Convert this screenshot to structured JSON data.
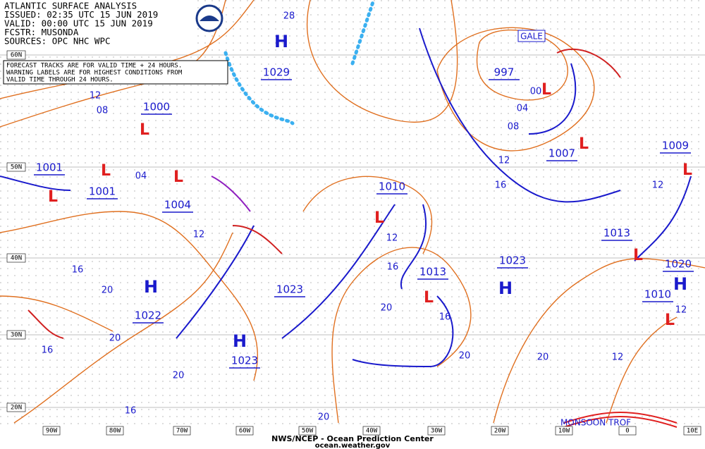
{
  "header": {
    "lines": [
      "ATLANTIC SURFACE ANALYSIS",
      "ISSUED: 02:35 UTC 15 JUN 2019",
      "VALID:  00:00 UTC 15 JUN 2019",
      "FCSTR:  MUSONDA",
      "SOURCES: OPC NHC WPC"
    ]
  },
  "note": [
    "FORECAST TRACKS ARE FOR VALID TIME + 24 HOURS.",
    "WARNING LABELS ARE FOR HIGHEST CONDITIONS FROM",
    "VALID TIME THROUGH 24 HOURS."
  ],
  "centers": [
    {
      "symbol": "H",
      "pressure": "1029"
    },
    {
      "symbol": "L",
      "pressure": "1000"
    },
    {
      "symbol": "L",
      "pressure": "1001"
    },
    {
      "symbol": "L",
      "pressure": "1001"
    },
    {
      "symbol": "L",
      "pressure": "1004"
    },
    {
      "symbol": "L",
      "pressure": "997"
    },
    {
      "symbol": "L",
      "pressure": "1007"
    },
    {
      "symbol": "L",
      "pressure": "1009"
    },
    {
      "symbol": "L",
      "pressure": "1010"
    },
    {
      "symbol": "L",
      "pressure": "1013"
    },
    {
      "symbol": "L",
      "pressure": "1013"
    },
    {
      "symbol": "H",
      "pressure": "1020"
    },
    {
      "symbol": "L",
      "pressure": "1010"
    },
    {
      "symbol": "H",
      "pressure": "1023"
    },
    {
      "symbol": "H",
      "pressure": "1022"
    },
    {
      "symbol": "H",
      "pressure": "1023"
    }
  ],
  "pressure_labels": [
    "1023"
  ],
  "isobar_labels": [
    "28",
    "12",
    "08",
    "04",
    "12",
    "16",
    "20",
    "20",
    "16",
    "12",
    "16",
    "20",
    "16",
    "20",
    "12",
    "16",
    "04",
    "08",
    "12",
    "12",
    "12",
    "20",
    "20",
    "16",
    "20",
    "00"
  ],
  "warnings": [
    "GALE"
  ],
  "features": [
    "MONSOON TROF"
  ],
  "lat_labels": [
    "60N",
    "50N",
    "40N",
    "30N",
    "20N"
  ],
  "lon_labels": [
    "90W",
    "80W",
    "70W",
    "60W",
    "50W",
    "40W",
    "30W",
    "20W",
    "10W",
    "0",
    "10E"
  ],
  "footer": [
    "NWS/NCEP - Ocean Prediction Center",
    "ocean.weather.gov"
  ]
}
